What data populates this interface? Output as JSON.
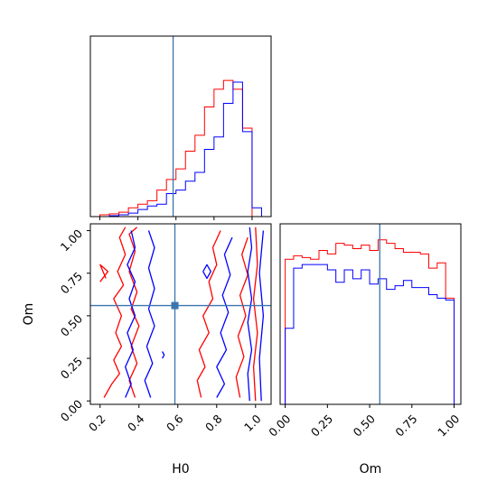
{
  "chart_data": {
    "type": "corner",
    "parameters": [
      "H0",
      "Om"
    ],
    "truths": {
      "H0": 0.585,
      "Om": 0.56
    },
    "colors": {
      "series_a": "#ff0000",
      "series_b": "#0000ff",
      "truth": "#3b75af"
    },
    "panels": [
      {
        "id": "H0-marginal",
        "type": "step-histogram",
        "xlim": [
          0.15,
          1.1
        ],
        "xticks": [
          0.2,
          0.4,
          0.6,
          0.8,
          1.0
        ],
        "x_tick_labels_shown": false,
        "yticks_shown": false,
        "bin_edges": [
          0.2,
          0.25,
          0.3,
          0.35,
          0.4,
          0.45,
          0.5,
          0.55,
          0.6,
          0.65,
          0.7,
          0.75,
          0.8,
          0.85,
          0.9,
          0.95,
          1.0,
          1.05
        ],
        "series": [
          {
            "name": "",
            "color": "series_a",
            "values": [
              0.01,
              0.015,
              0.025,
              0.05,
              0.07,
              0.09,
              0.15,
              0.21,
              0.27,
              0.37,
              0.46,
              0.62,
              0.72,
              0.77,
              0.72,
              0.5,
              0.0
            ]
          },
          {
            "name": "",
            "color": "series_b",
            "values": [
              0.0,
              0.005,
              0.01,
              0.02,
              0.04,
              0.06,
              0.07,
              0.13,
              0.15,
              0.2,
              0.25,
              0.38,
              0.45,
              0.64,
              0.76,
              0.48,
              0.05
            ]
          }
        ]
      },
      {
        "id": "H0-Om-2d",
        "type": "contour",
        "xlim": [
          0.15,
          1.08
        ],
        "ylim": [
          -0.02,
          1.04
        ],
        "xticks": [
          0.2,
          0.4,
          0.6,
          0.8,
          1.0
        ],
        "xtick_labels": [
          "0.2",
          "0.4",
          "0.6",
          "0.8",
          "1.0"
        ],
        "yticks": [
          0.0,
          0.25,
          0.5,
          0.75,
          1.0
        ],
        "ytick_labels": [
          "0.00",
          "0.25",
          "0.50",
          "0.75",
          "1.00"
        ],
        "xlabel": "H0",
        "ylabel": "Om",
        "contours": [
          {
            "color": "series_a",
            "points": [
              [
                0.22,
                0.02
              ],
              [
                0.26,
                0.1
              ],
              [
                0.3,
                0.16
              ],
              [
                0.27,
                0.24
              ],
              [
                0.31,
                0.32
              ],
              [
                0.28,
                0.4
              ],
              [
                0.31,
                0.5
              ],
              [
                0.27,
                0.6
              ],
              [
                0.32,
                0.68
              ],
              [
                0.29,
                0.76
              ],
              [
                0.33,
                0.86
              ],
              [
                0.3,
                0.96
              ],
              [
                0.33,
                1.02
              ]
            ]
          },
          {
            "color": "series_a",
            "points": [
              [
                0.38,
                0.02
              ],
              [
                0.35,
                0.12
              ],
              [
                0.39,
                0.22
              ],
              [
                0.36,
                0.32
              ],
              [
                0.4,
                0.44
              ],
              [
                0.36,
                0.54
              ],
              [
                0.39,
                0.64
              ],
              [
                0.35,
                0.76
              ],
              [
                0.38,
                0.88
              ],
              [
                0.35,
                0.98
              ],
              [
                0.39,
                1.02
              ]
            ]
          },
          {
            "color": "series_a",
            "points": [
              [
                0.2,
                0.7
              ],
              [
                0.24,
                0.76
              ],
              [
                0.2,
                0.8
              ],
              [
                0.23,
                0.72
              ]
            ]
          },
          {
            "color": "series_a",
            "points": [
              [
                0.72,
                0.02
              ],
              [
                0.7,
                0.12
              ],
              [
                0.74,
                0.2
              ],
              [
                0.71,
                0.3
              ],
              [
                0.76,
                0.4
              ],
              [
                0.73,
                0.5
              ],
              [
                0.78,
                0.6
              ],
              [
                0.76,
                0.7
              ],
              [
                0.8,
                0.8
              ],
              [
                0.78,
                0.9
              ],
              [
                0.82,
                1.0
              ]
            ]
          },
          {
            "color": "series_a",
            "points": [
              [
                0.92,
                0.02
              ],
              [
                0.9,
                0.14
              ],
              [
                0.94,
                0.26
              ],
              [
                0.91,
                0.38
              ],
              [
                0.95,
                0.5
              ],
              [
                0.92,
                0.62
              ],
              [
                0.96,
                0.74
              ],
              [
                0.93,
                0.86
              ],
              [
                0.96,
                0.96
              ]
            ]
          },
          {
            "color": "series_a",
            "points": [
              [
                1.0,
                0.0
              ],
              [
                0.99,
                0.2
              ],
              [
                1.01,
                0.4
              ],
              [
                0.99,
                0.6
              ],
              [
                1.01,
                0.8
              ],
              [
                1.0,
                1.02
              ]
            ]
          },
          {
            "color": "series_b",
            "points": [
              [
                0.33,
                0.02
              ],
              [
                0.36,
                0.1
              ],
              [
                0.33,
                0.2
              ],
              [
                0.37,
                0.3
              ],
              [
                0.34,
                0.4
              ],
              [
                0.38,
                0.5
              ],
              [
                0.35,
                0.6
              ],
              [
                0.38,
                0.7
              ],
              [
                0.34,
                0.8
              ],
              [
                0.38,
                0.9
              ],
              [
                0.36,
                1.0
              ]
            ]
          },
          {
            "color": "series_b",
            "points": [
              [
                0.46,
                0.02
              ],
              [
                0.43,
                0.12
              ],
              [
                0.47,
                0.22
              ],
              [
                0.44,
                0.32
              ],
              [
                0.48,
                0.44
              ],
              [
                0.45,
                0.54
              ],
              [
                0.48,
                0.66
              ],
              [
                0.45,
                0.78
              ],
              [
                0.48,
                0.9
              ],
              [
                0.45,
                1.0
              ]
            ]
          },
          {
            "color": "series_b",
            "points": [
              [
                0.8,
                0.02
              ],
              [
                0.84,
                0.1
              ],
              [
                0.8,
                0.2
              ],
              [
                0.85,
                0.3
              ],
              [
                0.82,
                0.4
              ],
              [
                0.86,
                0.52
              ],
              [
                0.83,
                0.62
              ],
              [
                0.87,
                0.74
              ],
              [
                0.84,
                0.86
              ],
              [
                0.88,
                0.96
              ]
            ]
          },
          {
            "color": "series_b",
            "points": [
              [
                0.97,
                0.0
              ],
              [
                0.96,
                0.16
              ],
              [
                0.98,
                0.3
              ],
              [
                0.96,
                0.46
              ],
              [
                0.98,
                0.6
              ],
              [
                0.96,
                0.76
              ],
              [
                0.98,
                0.9
              ],
              [
                0.97,
                1.02
              ]
            ]
          },
          {
            "color": "series_b",
            "points": [
              [
                1.03,
                0.0
              ],
              [
                1.02,
                0.25
              ],
              [
                1.04,
                0.5
              ],
              [
                1.02,
                0.75
              ],
              [
                1.04,
                1.0
              ]
            ]
          },
          {
            "color": "series_b",
            "points": [
              [
                0.73,
                0.76
              ],
              [
                0.75,
                0.8
              ],
              [
                0.77,
                0.76
              ],
              [
                0.75,
                0.72
              ],
              [
                0.73,
                0.76
              ]
            ]
          },
          {
            "color": "series_b",
            "points": [
              [
                0.52,
                0.25
              ],
              [
                0.53,
                0.27
              ],
              [
                0.52,
                0.29
              ]
            ]
          }
        ]
      },
      {
        "id": "Om-marginal",
        "type": "step-histogram",
        "xlim": [
          -0.03,
          1.04
        ],
        "xticks": [
          0.0,
          0.25,
          0.5,
          0.75,
          1.0
        ],
        "xtick_labels": [
          "0.00",
          "0.25",
          "0.50",
          "0.75",
          "1.00"
        ],
        "xlabel": "Om",
        "yticks_shown": false,
        "bin_edges": [
          0.0,
          0.05,
          0.1,
          0.15,
          0.2,
          0.25,
          0.3,
          0.35,
          0.4,
          0.45,
          0.5,
          0.55,
          0.6,
          0.65,
          0.7,
          0.75,
          0.8,
          0.85,
          0.9,
          0.95,
          1.0
        ],
        "series": [
          {
            "name": "",
            "color": "series_a",
            "values": [
              0.82,
              0.84,
              0.83,
              0.82,
              0.87,
              0.85,
              0.91,
              0.9,
              0.88,
              0.9,
              0.87,
              0.93,
              0.91,
              0.88,
              0.86,
              0.86,
              0.85,
              0.77,
              0.8,
              0.6
            ]
          },
          {
            "name": "",
            "color": "series_b",
            "values": [
              0.43,
              0.77,
              0.79,
              0.79,
              0.79,
              0.76,
              0.69,
              0.76,
              0.71,
              0.76,
              0.68,
              0.71,
              0.65,
              0.67,
              0.7,
              0.66,
              0.66,
              0.62,
              0.6,
              0.59
            ]
          }
        ]
      }
    ]
  }
}
